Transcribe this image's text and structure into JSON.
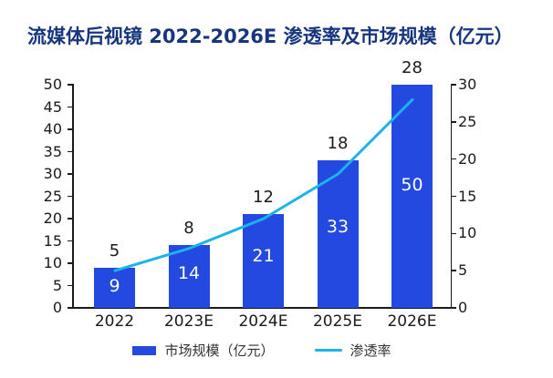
{
  "colors": {
    "bar": "#2349E0",
    "line": "#1BB3EA",
    "title_text": "#17367F",
    "axis_text": "#1A1A1A",
    "legend_text": "#333333"
  },
  "legend": {
    "bar_label": "市场规模（亿元）",
    "line_label": "渗透率"
  },
  "chart_data": {
    "type": "bar",
    "combo": "bar+line",
    "title": "流媒体后视镜 2022-2026E 渗透率及市场规模（亿元）",
    "categories": [
      "2022",
      "2023E",
      "2024E",
      "2025E",
      "2026E"
    ],
    "series": [
      {
        "name": "市场规模（亿元）",
        "type": "bar",
        "axis": "left",
        "values": [
          9,
          14,
          21,
          33,
          50
        ]
      },
      {
        "name": "渗透率",
        "type": "line",
        "axis": "right",
        "values": [
          5,
          8,
          12,
          18,
          28
        ]
      }
    ],
    "left_axis": {
      "min": 0,
      "max": 50,
      "ticks": [
        0,
        5,
        10,
        15,
        20,
        25,
        30,
        35,
        40,
        45,
        50
      ]
    },
    "right_axis": {
      "min": 0,
      "max": 30,
      "ticks": [
        0,
        5,
        10,
        15,
        20,
        25,
        30
      ]
    },
    "grid": false,
    "legend_position": "bottom"
  }
}
